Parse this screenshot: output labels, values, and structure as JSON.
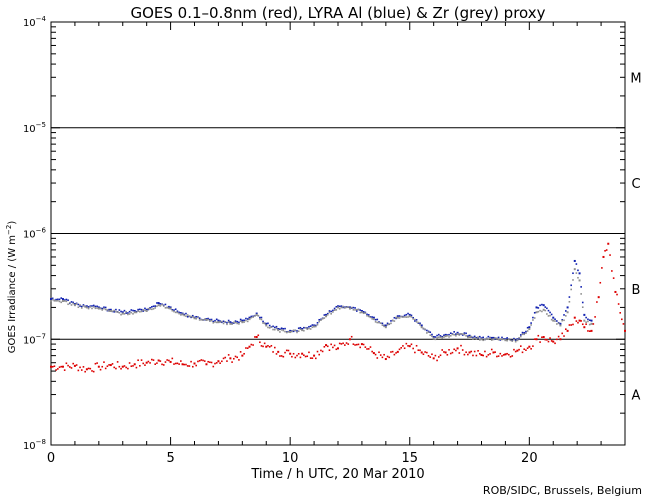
{
  "chart_data": {
    "type": "scatter",
    "title": "GOES 0.1–0.8nm (red), LYRA Al (blue) & Zr (grey) proxy",
    "xlabel": "Time / h UTC, 20 Mar 2010",
    "ylabel_main": "GOES Irradiance / (W m",
    "ylabel_sup": "−2",
    "ylabel_end": ")",
    "xlim": [
      0,
      24
    ],
    "ylim": [
      1e-08,
      0.0001
    ],
    "yscale": "log",
    "x_ticks": [
      {
        "value": 0,
        "label": "0"
      },
      {
        "value": 5,
        "label": "5"
      },
      {
        "value": 10,
        "label": "10"
      },
      {
        "value": 15,
        "label": "15"
      },
      {
        "value": 20,
        "label": "20"
      }
    ],
    "y_ticks": [
      {
        "exp": -8,
        "base": "10",
        "sup": "−8"
      },
      {
        "exp": -7,
        "base": "10",
        "sup": "−7"
      },
      {
        "exp": -6,
        "base": "10",
        "sup": "−6"
      },
      {
        "exp": -5,
        "base": "10",
        "sup": "−5"
      },
      {
        "exp": -4,
        "base": "10",
        "sup": "−4"
      }
    ],
    "flare_class_lines": [
      1e-07,
      1e-06,
      1e-05
    ],
    "class_labels": [
      {
        "label": "A",
        "value": 3e-08
      },
      {
        "label": "B",
        "value": 3e-07
      },
      {
        "label": "C",
        "value": 3e-06
      },
      {
        "label": "M",
        "value": 3e-05
      }
    ],
    "series": [
      {
        "name": "GOES 0.1–0.8nm",
        "color": "#dd0000",
        "x": [
          0,
          0.5,
          1,
          1.5,
          2,
          2.5,
          3,
          3.5,
          4,
          4.5,
          5,
          5.5,
          6,
          6.5,
          7,
          7.5,
          8,
          8.3,
          8.6,
          9,
          9.5,
          10,
          10.5,
          11,
          11.5,
          12,
          12.5,
          13,
          13.5,
          14,
          14.5,
          15,
          15.5,
          16,
          16.5,
          17,
          17.5,
          18,
          18.5,
          19,
          19.5,
          20,
          20.3,
          20.6,
          21,
          21.3,
          21.6,
          21.9,
          22.1,
          22.3,
          22.6,
          22.9,
          23.1,
          23.3,
          23.6,
          24
        ],
        "y": [
          5.5e-08,
          5.5e-08,
          5.6e-08,
          5.2e-08,
          5.5e-08,
          5.7e-08,
          5.5e-08,
          5.8e-08,
          6e-08,
          6.3e-08,
          6.1e-08,
          5.8e-08,
          5.9e-08,
          5.8e-08,
          6.2e-08,
          6.6e-08,
          7e-08,
          8.5e-08,
          1.05e-07,
          8.5e-08,
          7.6e-08,
          7.3e-08,
          7.3e-08,
          7e-08,
          8.8e-08,
          8.2e-08,
          1e-07,
          9e-08,
          7.4e-08,
          6.5e-08,
          7.6e-08,
          8.6e-08,
          7.5e-08,
          6.6e-08,
          7.5e-08,
          8.2e-08,
          7.5e-08,
          7.1e-08,
          7.5e-08,
          7.2e-08,
          7.8e-08,
          8.5e-08,
          1e-07,
          1.05e-07,
          9.5e-08,
          1e-07,
          1.2e-07,
          1.6e-07,
          1.5e-07,
          1.3e-07,
          1.2e-07,
          2.5e-07,
          6e-07,
          8e-07,
          2.8e-07,
          1.2e-07
        ]
      },
      {
        "name": "LYRA Al",
        "color": "#1020b0",
        "x": [
          0,
          0.5,
          1,
          1.5,
          2,
          2.5,
          3,
          3.5,
          4,
          4.5,
          5,
          5.5,
          6,
          6.5,
          7,
          7.5,
          8,
          8.3,
          8.6,
          9,
          9.5,
          10,
          10.5,
          11,
          11.5,
          12,
          12.5,
          13,
          13.5,
          14,
          14.5,
          15,
          15.5,
          16,
          16.5,
          17,
          17.5,
          18,
          18.5,
          19,
          19.5,
          20,
          20.3,
          20.6,
          21,
          21.3,
          21.6,
          21.9,
          22.1,
          22.3,
          22.6
        ],
        "y": [
          2.4e-07,
          2.4e-07,
          2.15e-07,
          2.05e-07,
          2e-07,
          1.9e-07,
          1.8e-07,
          1.85e-07,
          1.9e-07,
          2.2e-07,
          2e-07,
          1.75e-07,
          1.6e-07,
          1.55e-07,
          1.5e-07,
          1.45e-07,
          1.5e-07,
          1.6e-07,
          1.75e-07,
          1.4e-07,
          1.25e-07,
          1.2e-07,
          1.25e-07,
          1.35e-07,
          1.7e-07,
          2.05e-07,
          2e-07,
          1.85e-07,
          1.6e-07,
          1.35e-07,
          1.65e-07,
          1.7e-07,
          1.35e-07,
          1.05e-07,
          1.1e-07,
          1.15e-07,
          1.08e-07,
          1.02e-07,
          1.03e-07,
          1e-07,
          1e-07,
          1.3e-07,
          2e-07,
          2.1e-07,
          1.6e-07,
          1.4e-07,
          2e-07,
          5.5e-07,
          4.2e-07,
          1.7e-07,
          1.5e-07
        ]
      },
      {
        "name": "LYRA Zr proxy",
        "color": "#909090",
        "x": [
          0,
          0.5,
          1,
          1.5,
          2,
          2.5,
          3,
          3.5,
          4,
          4.5,
          5,
          5.5,
          6,
          6.5,
          7,
          7.5,
          8,
          8.3,
          8.6,
          9,
          9.5,
          10,
          10.5,
          11,
          11.5,
          12,
          12.5,
          13,
          13.5,
          14,
          14.5,
          15,
          15.5,
          16,
          16.5,
          17,
          17.5,
          18,
          18.5,
          19,
          19.5,
          20,
          20.3,
          20.6,
          21,
          21.3,
          21.6,
          21.9,
          22.1,
          22.3,
          22.6
        ],
        "y": [
          2.3e-07,
          2.3e-07,
          2.1e-07,
          2e-07,
          1.95e-07,
          1.85e-07,
          1.75e-07,
          1.8e-07,
          1.85e-07,
          2.1e-07,
          1.95e-07,
          1.72e-07,
          1.58e-07,
          1.52e-07,
          1.45e-07,
          1.4e-07,
          1.45e-07,
          1.55e-07,
          1.7e-07,
          1.35e-07,
          1.22e-07,
          1.17e-07,
          1.22e-07,
          1.32e-07,
          1.65e-07,
          2e-07,
          1.95e-07,
          1.8e-07,
          1.55e-07,
          1.3e-07,
          1.6e-07,
          1.65e-07,
          1.3e-07,
          1.02e-07,
          1.07e-07,
          1.12e-07,
          1.05e-07,
          1e-07,
          1e-07,
          9.8e-08,
          9.8e-08,
          1.25e-07,
          1.8e-07,
          1.9e-07,
          1.5e-07,
          1.35e-07,
          1.8e-07,
          4.6e-07,
          3.6e-07,
          1.5e-07,
          1.4e-07
        ]
      }
    ]
  },
  "credit": "ROB/SIDC, Brussels, Belgium"
}
